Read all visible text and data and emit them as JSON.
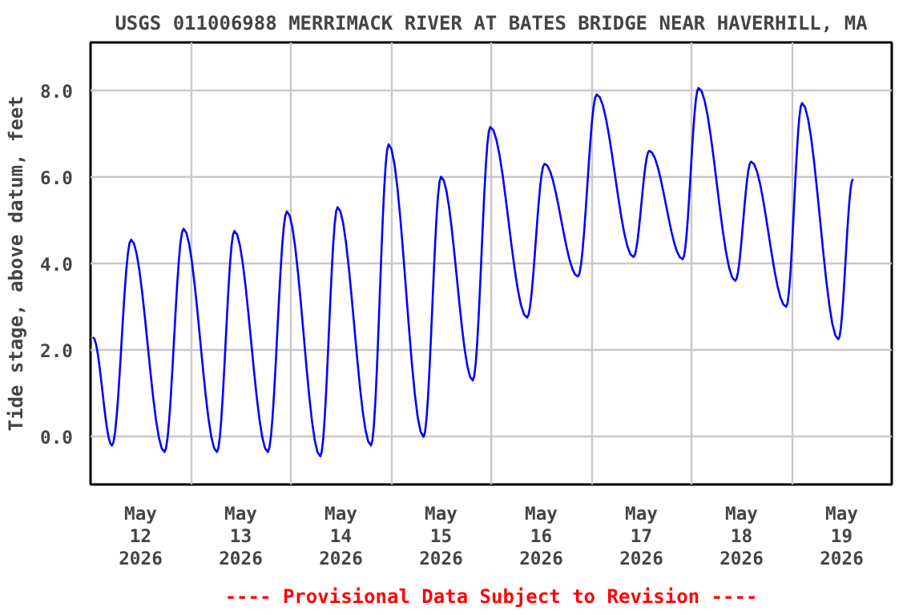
{
  "chart_data": {
    "type": "line",
    "title": "USGS 011006988 MERRIMACK RIVER AT BATES BRIDGE NEAR HAVERHILL, MA",
    "ylabel": "Tide stage, above datum, feet",
    "annotations": [
      "---- Provisional Data Subject to Revision ----"
    ],
    "x": [
      "2026-05-12T00:34",
      "2026-05-12T05:08",
      "2026-05-12T09:43",
      "2026-05-12T17:43",
      "2026-05-12T22:17",
      "2026-05-13T06:17",
      "2026-05-13T10:29",
      "2026-05-13T18:29",
      "2026-05-13T23:03",
      "2026-05-14T07:03",
      "2026-05-14T11:12",
      "2026-05-14T19:12",
      "2026-05-14T23:26",
      "2026-05-15T07:48",
      "2026-05-15T12:00",
      "2026-05-15T19:36",
      "2026-05-15T23:48",
      "2026-05-16T08:36",
      "2026-05-16T12:48",
      "2026-05-16T20:48",
      "2026-05-17T01:18",
      "2026-05-17T10:06",
      "2026-05-17T13:54",
      "2026-05-17T21:54",
      "2026-05-18T01:42",
      "2026-05-18T10:30",
      "2026-05-18T14:18",
      "2026-05-18T22:42",
      "2026-05-19T02:30",
      "2026-05-19T11:12",
      "2026-05-19T14:42"
    ],
    "series": [
      {
        "color": "#0000ff",
        "values": [
          2.3,
          -0.2,
          4.55,
          -0.35,
          4.8,
          -0.35,
          4.75,
          -0.35,
          5.2,
          -0.45,
          5.3,
          -0.2,
          6.75,
          0.0,
          6.0,
          1.3,
          7.15,
          2.75,
          6.3,
          3.7,
          7.9,
          4.15,
          6.6,
          4.1,
          8.05,
          3.6,
          6.35,
          3.0,
          7.7,
          2.25,
          5.95
        ]
      }
    ],
    "xlim": [
      "2026-05-12T00:00",
      "2026-05-20T00:00"
    ],
    "xticks": [
      {
        "value": "2026-05-12T12:00",
        "label": "May\n12\n2026"
      },
      {
        "value": "2026-05-13T12:00",
        "label": "May\n13\n2026"
      },
      {
        "value": "2026-05-14T12:00",
        "label": "May\n14\n2026"
      },
      {
        "value": "2026-05-15T12:00",
        "label": "May\n15\n2026"
      },
      {
        "value": "2026-05-16T12:00",
        "label": "May\n16\n2026"
      },
      {
        "value": "2026-05-17T12:00",
        "label": "May\n17\n2026"
      },
      {
        "value": "2026-05-18T12:00",
        "label": "May\n18\n2026"
      },
      {
        "value": "2026-05-19T12:00",
        "label": "May\n19\n2026"
      },
      {
        "value": "2026-05-13T00:00",
        "label": null
      },
      {
        "value": "2026-05-14T00:00",
        "label": null
      },
      {
        "value": "2026-05-15T00:00",
        "label": null
      },
      {
        "value": "2026-05-16T00:00",
        "label": null
      },
      {
        "value": "2026-05-17T00:00",
        "label": null
      },
      {
        "value": "2026-05-18T00:00",
        "label": null
      },
      {
        "value": "2026-05-19T00:00",
        "label": null
      }
    ],
    "ylim": [
      -1.1,
      9.1
    ],
    "yticks": [
      {
        "value": 0,
        "label": "0.0"
      },
      {
        "value": 2,
        "label": "2.0"
      },
      {
        "value": 4,
        "label": "4.0"
      },
      {
        "value": 6,
        "label": "6.0"
      },
      {
        "value": 8,
        "label": "8.0"
      }
    ],
    "grid": true,
    "line_style": "solid",
    "marker": "none"
  }
}
